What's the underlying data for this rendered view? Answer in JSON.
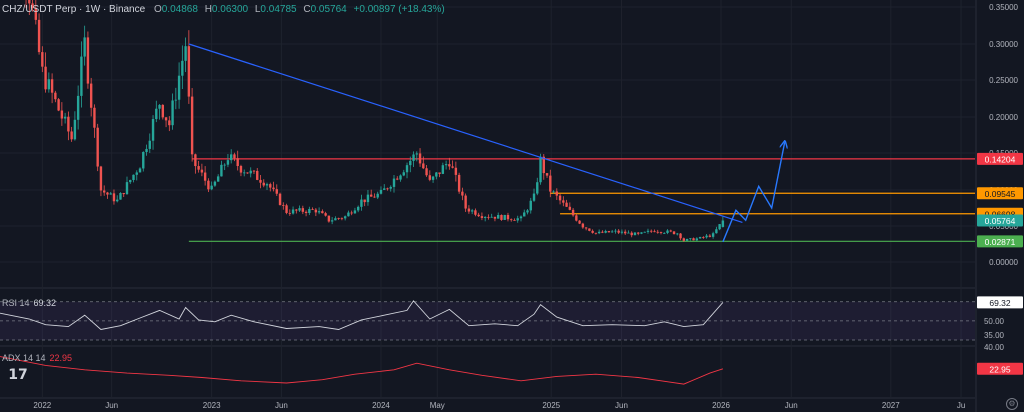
{
  "header": {
    "symbol_text": "CHZ/USDT Perp · 1W · Binance",
    "o_key": "O",
    "o_val": "0.04868",
    "h_key": "H",
    "h_val": "0.06300",
    "l_key": "L",
    "l_val": "0.04785",
    "c_key": "C",
    "c_val": "0.05764",
    "change": "+0.00897 (+18.43%)"
  },
  "colors": {
    "background": "#131722",
    "bull": "#26a69a",
    "bear": "#ef5350",
    "trendline": "#2962ff",
    "resistance": "#f23645",
    "level_orange": "#ff9800",
    "support": "#4caf50",
    "rsi_line": "#d1d4dc",
    "rsi_band": "#7e57c2",
    "adx_line": "#f23645",
    "projection": "#2979ff"
  },
  "chart_data": [
    {
      "type": "candlestick",
      "title": "CHZ/USDT Perp · 1W · Binance",
      "y_scale": "logarithmic",
      "ylim": [
        0.0,
        0.35
      ],
      "y_ticks": [
        "0.35000",
        "0.30000",
        "0.25000",
        "0.20000",
        "0.15000",
        "0.10000",
        "0.05000",
        "0.00000"
      ],
      "x_ticks": [
        "2022",
        "Jun",
        "2023",
        "Jun",
        "2024",
        "May",
        "2025",
        "Jun",
        "2026",
        "Jun",
        "2027",
        "Ju"
      ],
      "last": {
        "open": 0.04868,
        "high": 0.063,
        "low": 0.04785,
        "close": 0.05764
      },
      "price_path": [
        [
          "2021-10-04",
          0.55
        ],
        [
          "2021-10-25",
          0.65
        ],
        [
          "2021-11-15",
          0.45
        ],
        [
          "2022-01-03",
          0.26
        ],
        [
          "2022-03-07",
          0.17
        ],
        [
          "2022-04-04",
          0.3
        ],
        [
          "2022-05-09",
          0.1
        ],
        [
          "2022-06-13",
          0.085
        ],
        [
          "2022-08-01",
          0.135
        ],
        [
          "2022-09-12",
          0.22
        ],
        [
          "2022-10-03",
          0.19
        ],
        [
          "2022-11-07",
          0.3
        ],
        [
          "2022-11-21",
          0.14
        ],
        [
          "2023-01-02",
          0.1
        ],
        [
          "2023-02-06",
          0.145
        ],
        [
          "2023-03-06",
          0.13
        ],
        [
          "2023-05-01",
          0.11
        ],
        [
          "2023-06-12",
          0.07
        ],
        [
          "2023-08-14",
          0.072
        ],
        [
          "2023-09-11",
          0.058
        ],
        [
          "2023-10-16",
          0.063
        ],
        [
          "2023-11-20",
          0.085
        ],
        [
          "2024-01-01",
          0.095
        ],
        [
          "2024-03-04",
          0.14
        ],
        [
          "2024-03-18",
          0.15
        ],
        [
          "2024-04-15",
          0.11
        ],
        [
          "2024-05-27",
          0.14
        ],
        [
          "2024-07-01",
          0.075
        ],
        [
          "2024-08-05",
          0.065
        ],
        [
          "2024-09-16",
          0.062
        ],
        [
          "2024-10-28",
          0.06
        ],
        [
          "2024-11-25",
          0.09
        ],
        [
          "2024-12-09",
          0.14
        ],
        [
          "2024-12-30",
          0.1
        ],
        [
          "2025-02-03",
          0.075
        ],
        [
          "2025-03-10",
          0.05
        ],
        [
          "2025-04-07",
          0.04
        ],
        [
          "2025-05-19",
          0.042
        ],
        [
          "2025-07-07",
          0.038
        ],
        [
          "2025-08-11",
          0.044
        ],
        [
          "2025-09-29",
          0.04
        ],
        [
          "2025-10-13",
          0.03
        ],
        [
          "2025-11-17",
          0.033
        ],
        [
          "2025-12-15",
          0.038
        ],
        [
          "2026-01-05",
          0.05764
        ]
      ],
      "horizontal_levels": [
        {
          "value": 0.14204,
          "label": "0.14204",
          "role": "resistance",
          "from": "2022-11-21"
        },
        {
          "value": 0.09545,
          "label": "0.09545",
          "role": "level",
          "from": "2024-12-30"
        },
        {
          "value": 0.06698,
          "label": "0.06698",
          "role": "level",
          "from": "2025-01-20"
        },
        {
          "value": 0.02871,
          "label": "0.02871",
          "role": "support",
          "from": "2022-11-14"
        }
      ],
      "last_price_label": "0.05764",
      "trendline": [
        [
          "2022-11-14",
          0.3
        ],
        [
          "2026-02-16",
          0.055
        ]
      ],
      "projection_path": [
        [
          "2026-01-05",
          0.028
        ],
        [
          "2026-02-02",
          0.072
        ],
        [
          "2026-02-23",
          0.058
        ],
        [
          "2026-03-23",
          0.105
        ],
        [
          "2026-04-20",
          0.075
        ],
        [
          "2026-05-18",
          0.165
        ]
      ]
    },
    {
      "type": "line",
      "title": "RSI 14",
      "value_label": "69.32",
      "ylim": [
        35,
        70
      ],
      "y_ticks": [
        "50.00",
        "35.00"
      ],
      "band": [
        30,
        70
      ],
      "series": [
        {
          "values": [
            [
              "2021-10-04",
              58
            ],
            [
              "2021-12-06",
              52
            ],
            [
              "2022-01-10",
              46
            ],
            [
              "2022-02-28",
              44
            ],
            [
              "2022-04-04",
              56
            ],
            [
              "2022-05-09",
              41
            ],
            [
              "2022-06-20",
              45
            ],
            [
              "2022-08-01",
              53
            ],
            [
              "2022-09-12",
              61
            ],
            [
              "2022-10-24",
              52
            ],
            [
              "2022-11-07",
              64
            ],
            [
              "2022-12-05",
              51
            ],
            [
              "2023-01-09",
              49
            ],
            [
              "2023-02-13",
              56
            ],
            [
              "2023-04-03",
              49
            ],
            [
              "2023-06-12",
              42
            ],
            [
              "2023-08-21",
              44
            ],
            [
              "2023-10-02",
              41
            ],
            [
              "2023-11-20",
              51
            ],
            [
              "2024-01-08",
              56
            ],
            [
              "2024-02-26",
              61
            ],
            [
              "2024-03-11",
              71
            ],
            [
              "2024-04-15",
              52
            ],
            [
              "2024-05-27",
              62
            ],
            [
              "2024-07-08",
              45
            ],
            [
              "2024-09-02",
              47
            ],
            [
              "2024-10-21",
              45
            ],
            [
              "2024-11-25",
              57
            ],
            [
              "2024-12-09",
              67
            ],
            [
              "2025-01-13",
              54
            ],
            [
              "2025-03-10",
              45
            ],
            [
              "2025-05-12",
              46
            ],
            [
              "2025-07-21",
              45
            ],
            [
              "2025-09-01",
              49
            ],
            [
              "2025-10-13",
              44
            ],
            [
              "2025-11-24",
              46
            ],
            [
              "2026-01-05",
              69.32
            ]
          ]
        }
      ]
    },
    {
      "type": "line",
      "title": "ADX 14 14",
      "value_label": "22.95",
      "ylim": [
        0,
        40
      ],
      "y_ticks": [
        "40.00"
      ],
      "series": [
        {
          "values": [
            [
              "2021-10-04",
              34
            ],
            [
              "2022-01-10",
              26
            ],
            [
              "2022-04-04",
              22
            ],
            [
              "2022-07-04",
              19
            ],
            [
              "2022-10-03",
              17
            ],
            [
              "2022-12-12",
              15
            ],
            [
              "2023-03-06",
              12
            ],
            [
              "2023-06-12",
              10
            ],
            [
              "2023-08-28",
              13
            ],
            [
              "2023-11-06",
              18
            ],
            [
              "2024-01-29",
              22
            ],
            [
              "2024-03-18",
              28
            ],
            [
              "2024-05-27",
              22
            ],
            [
              "2024-08-05",
              17
            ],
            [
              "2024-10-28",
              12
            ],
            [
              "2025-01-13",
              16
            ],
            [
              "2025-04-07",
              18
            ],
            [
              "2025-07-07",
              15
            ],
            [
              "2025-10-13",
              9
            ],
            [
              "2025-12-08",
              19
            ],
            [
              "2026-01-05",
              22.95
            ]
          ]
        }
      ]
    }
  ],
  "indicators": {
    "rsi": {
      "name": "RSI 14",
      "value": "69.32"
    },
    "adx": {
      "name": "ADX 14 14",
      "value": "22.95"
    }
  },
  "logo_text": "17",
  "settings_icon": "gear-icon"
}
